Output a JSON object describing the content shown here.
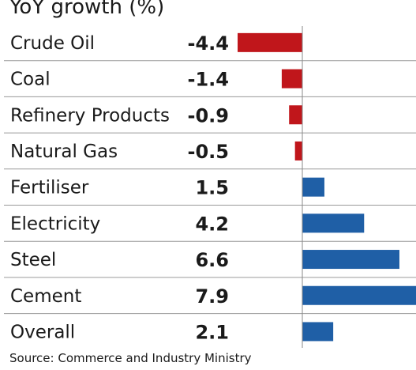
{
  "title": "YoY growth (%)",
  "source": "Source: Commerce and Industry Ministry",
  "colors": {
    "negative": "#c0161b",
    "positive": "#1f5fa6",
    "separator": "#9a9a9a",
    "zero_line": "#888888"
  },
  "chart_data": {
    "type": "bar",
    "orientation": "horizontal",
    "title": "YoY growth (%)",
    "xlabel": "",
    "ylabel": "",
    "categories": [
      "Crude Oil",
      "Coal",
      "Refinery Products",
      "Natural Gas",
      "Fertiliser",
      "Electricity",
      "Steel",
      "Cement",
      "Overall"
    ],
    "value_labels": [
      "-4.4",
      "-1.4",
      "-0.9",
      "-0.5",
      "1.5",
      "4.2",
      "6.6",
      "7.9",
      "2.1"
    ],
    "values": [
      -4.4,
      -1.4,
      -0.9,
      -0.5,
      1.5,
      4.2,
      6.6,
      7.9,
      2.1
    ],
    "xlim": [
      -4.4,
      7.9
    ],
    "grid": false,
    "legend": "none"
  }
}
